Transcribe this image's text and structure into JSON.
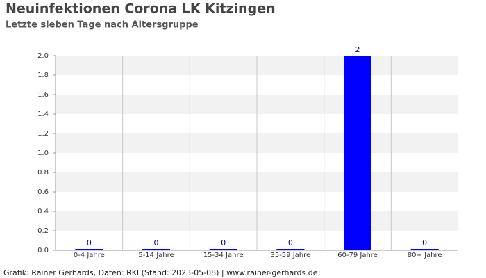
{
  "chart_data": {
    "type": "bar",
    "title": "Neuinfektionen Corona LK Kitzingen",
    "subtitle": "Letzte sieben Tage nach Altersgruppe",
    "categories": [
      "0-4 Jahre",
      "5-14 Jahre",
      "15-34 Jahre",
      "35-59 Jahre",
      "60-79 Jahre",
      "80+ Jahre"
    ],
    "values": [
      0,
      0,
      0,
      0,
      2,
      0
    ],
    "color": "#0000ff",
    "ylim": [
      0,
      2
    ],
    "yticks": [
      {
        "value": 0,
        "label": "0.0"
      },
      {
        "value": 0.2,
        "label": "0.2"
      },
      {
        "value": 0.4,
        "label": "0.4"
      },
      {
        "value": 0.6,
        "label": "0.6"
      },
      {
        "value": 0.8,
        "label": "0.8"
      },
      {
        "value": 1,
        "label": "1.0"
      },
      {
        "value": 1.2,
        "label": "1.2"
      },
      {
        "value": 1.4,
        "label": "1.4"
      },
      {
        "value": 1.6,
        "label": "1.6"
      },
      {
        "value": 1.8,
        "label": "1.8"
      },
      {
        "value": 2,
        "label": "2.0"
      }
    ],
    "grid": true,
    "footer": "Grafik: Rainer Gerhards, Daten: RKI (Stand: 2023-05-08) | www.rainer-gerhards.de"
  }
}
